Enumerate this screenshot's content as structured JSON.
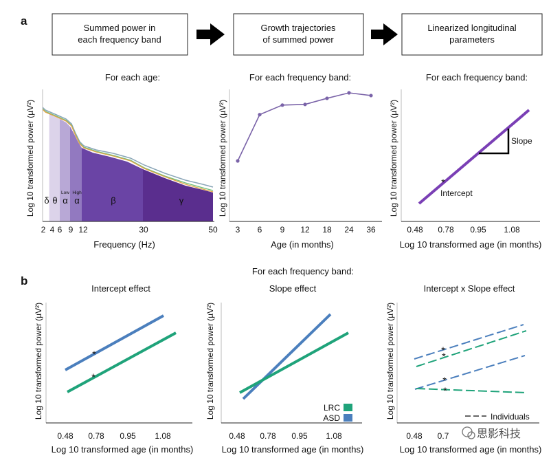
{
  "panel_a": {
    "label": "a",
    "boxes": [
      {
        "line1": "Summed power in",
        "line2": "each frequency band"
      },
      {
        "line1": "Growth trajectories",
        "line2": "of summed power"
      },
      {
        "line1": "Linearized longitudinal",
        "line2": "parameters"
      }
    ],
    "captions": [
      "For each age:",
      "For each frequency band:",
      "For each frequency band:"
    ]
  },
  "panel_b": {
    "label": "b",
    "caption": "For each frequency band:",
    "titles": [
      "Intercept effect",
      "Slope effect",
      "Intercept x Slope effect"
    ]
  },
  "y_axis_label": "Log 10 transformed power (µV²)",
  "x_axis_label_age": "Log 10 transformed age (in months)",
  "spectrum": {
    "xlabel": "Frequency (Hz)",
    "ticks": [
      "2",
      "4",
      "6",
      "9",
      "12",
      "30",
      "50"
    ],
    "band_symbols": [
      "δ",
      "θ",
      "α",
      "α",
      "β",
      "γ"
    ],
    "low_label": "Low",
    "high_label": "High",
    "band_colors": [
      "#ffffff",
      "#dcd3ea",
      "#b8a8d6",
      "#9279c0",
      "#6a44a5",
      "#5a2e8e"
    ]
  },
  "trajectory": {
    "xlabel": "Age (in months)",
    "ticks": [
      "3",
      "6",
      "9",
      "12",
      "18",
      "24",
      "36"
    ],
    "color": "#7a63a8"
  },
  "linearized": {
    "ticks": [
      "0.48",
      "0.78",
      "0.95",
      "1.08"
    ],
    "slope_label": "Slope",
    "intercept_label": "Intercept",
    "star": "*",
    "color": "#7a3fb5"
  },
  "effects_ticks": [
    "0.48",
    "0.78",
    "0.95",
    "1.08"
  ],
  "effects_ticks_partial": [
    "0.48",
    "0.7"
  ],
  "legend": {
    "lrc": "LRC",
    "asd": "ASD",
    "individuals": "Individuals"
  },
  "colors": {
    "lrc": "#1fa37a",
    "asd": "#4b7fbd"
  },
  "star": "*",
  "watermark": "思影科技",
  "chart_data": [
    {
      "type": "area",
      "xlabel": "Frequency (Hz)",
      "x": [
        2,
        4,
        6,
        9,
        12,
        30,
        50
      ],
      "bands": [
        {
          "name": "δ",
          "range": [
            2,
            4
          ]
        },
        {
          "name": "θ",
          "range": [
            4,
            6
          ]
        },
        {
          "name": "Low α",
          "range": [
            6,
            9
          ]
        },
        {
          "name": "High α",
          "range": [
            9,
            12
          ]
        },
        {
          "name": "β",
          "range": [
            12,
            30
          ]
        },
        {
          "name": "γ",
          "range": [
            30,
            50
          ]
        }
      ]
    },
    {
      "type": "line",
      "xlabel": "Age (in months)",
      "x": [
        "3",
        "6",
        "9",
        "12",
        "18",
        "24",
        "36"
      ],
      "values": [
        0.0,
        0.68,
        0.82,
        0.83,
        0.92,
        1.0,
        0.96
      ]
    },
    {
      "type": "line",
      "xlabel": "Log 10 transformed age (in months)",
      "x": [
        0.48,
        0.78,
        0.95,
        1.08
      ]
    },
    {
      "type": "line",
      "title": "Intercept effect",
      "xlabel": "Log 10 transformed age (in months)",
      "series": [
        {
          "name": "ASD"
        },
        {
          "name": "LRC"
        }
      ]
    },
    {
      "type": "line",
      "title": "Slope effect",
      "xlabel": "Log 10 transformed age (in months)",
      "series": [
        {
          "name": "ASD"
        },
        {
          "name": "LRC"
        }
      ]
    },
    {
      "type": "line",
      "title": "Intercept x Slope effect",
      "xlabel": "Log 10 transformed age (in months)",
      "series": [
        {
          "name": "Individuals"
        }
      ]
    }
  ]
}
